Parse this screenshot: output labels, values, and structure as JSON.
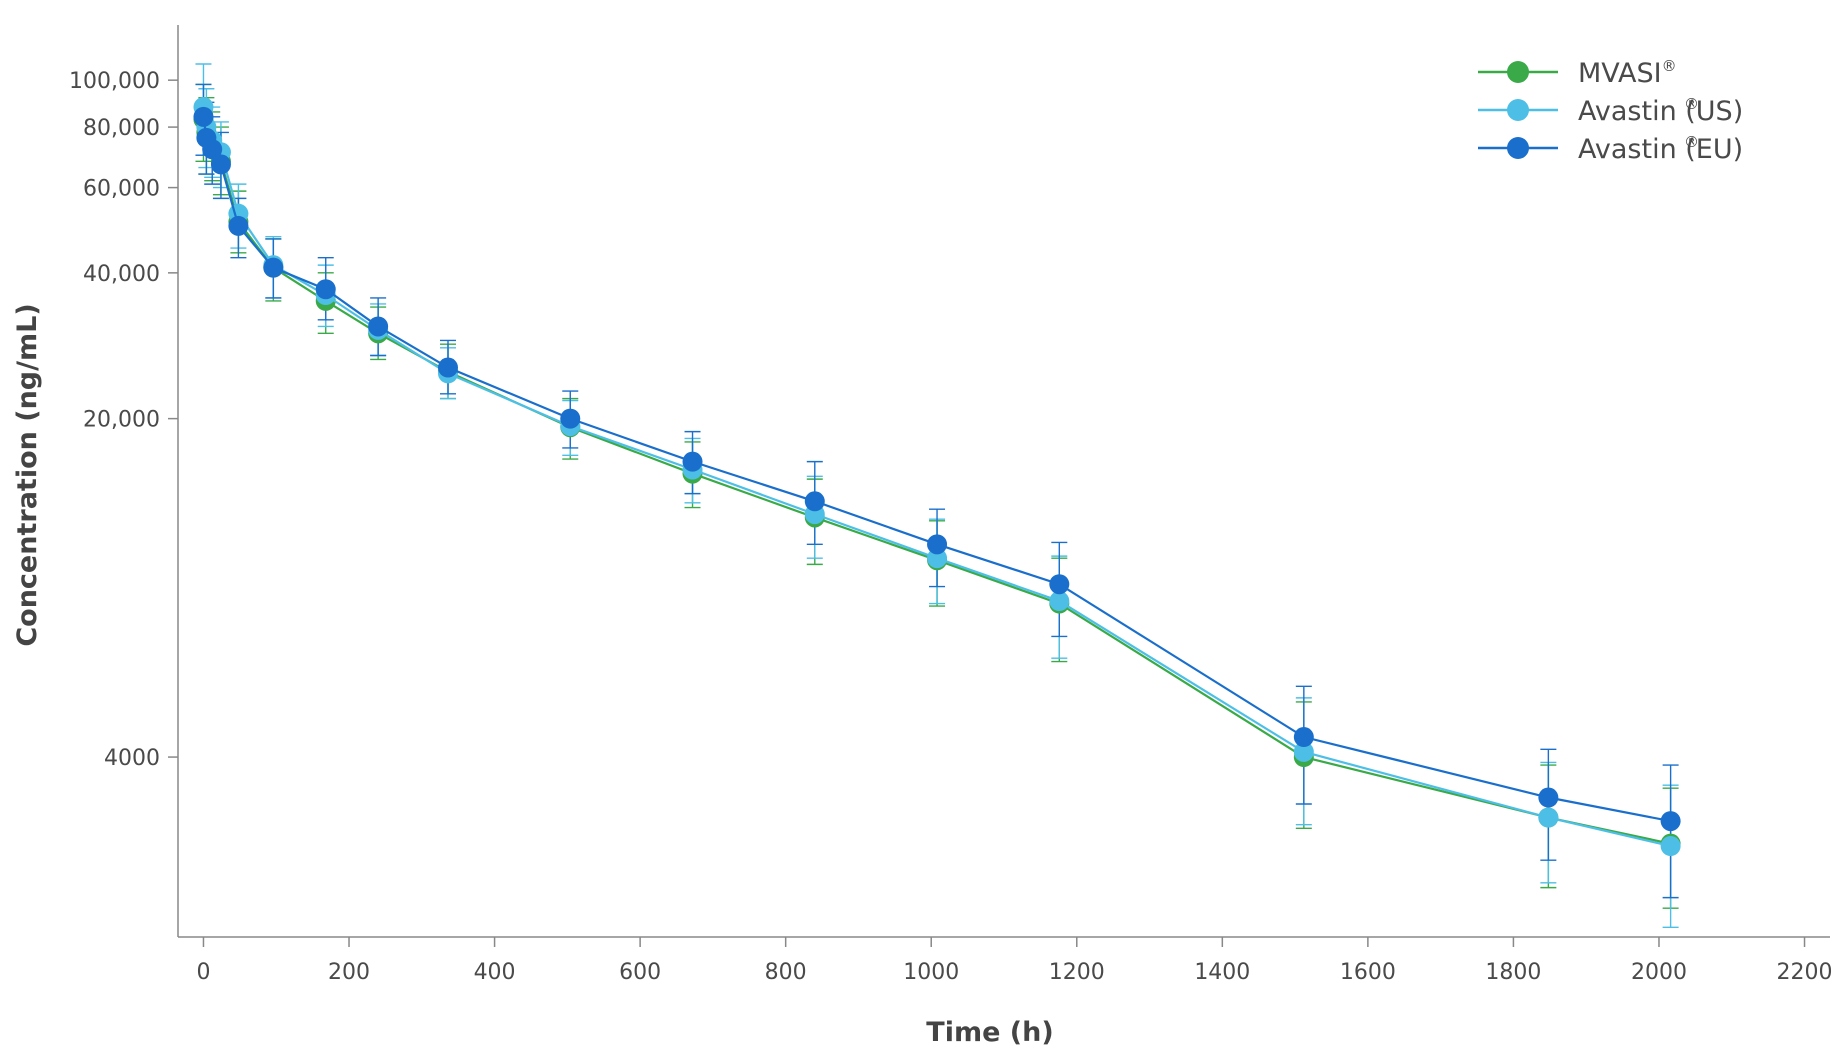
{
  "chart_data": {
    "type": "line",
    "title": "",
    "xlabel": "Time (h)",
    "ylabel": "Concentration (ng/mL)",
    "y_scale": "log",
    "xlim": [
      -35,
      2235
    ],
    "ylim": [
      1700,
      130000
    ],
    "x_ticks": [
      0,
      200,
      400,
      600,
      800,
      1000,
      1200,
      1400,
      1600,
      1800,
      2000,
      2200
    ],
    "x_tick_labels": [
      "0",
      "200",
      "400",
      "600",
      "800",
      "1000",
      "1200",
      "1400",
      "1600",
      "1800",
      "2000",
      "2200"
    ],
    "y_ticks": [
      4000,
      20000,
      40000,
      60000,
      80000,
      100000
    ],
    "y_tick_labels": [
      "4000",
      "20,000",
      "40,000",
      "60,000",
      "80,000",
      "100,000"
    ],
    "grid": false,
    "legend_position": "top-right",
    "series": [
      {
        "name": "MVASI",
        "superscript": "®",
        "color": "#3aaa49",
        "points": [
          {
            "x": 0,
            "y": 83000,
            "lo": 68000,
            "hi": 98000
          },
          {
            "x": 4,
            "y": 78000,
            "lo": 64000,
            "hi": 92000
          },
          {
            "x": 12,
            "y": 74000,
            "lo": 62000,
            "hi": 86000
          },
          {
            "x": 24,
            "y": 68000,
            "lo": 58000,
            "hi": 80000
          },
          {
            "x": 48,
            "y": 51000,
            "lo": 44000,
            "hi": 59000
          },
          {
            "x": 96,
            "y": 41000,
            "lo": 35000,
            "hi": 47000
          },
          {
            "x": 168,
            "y": 35000,
            "lo": 30000,
            "hi": 40000
          },
          {
            "x": 240,
            "y": 30000,
            "lo": 26500,
            "hi": 34000
          },
          {
            "x": 336,
            "y": 25000,
            "lo": 22000,
            "hi": 28500
          },
          {
            "x": 504,
            "y": 19200,
            "lo": 16500,
            "hi": 22000
          },
          {
            "x": 672,
            "y": 15400,
            "lo": 13100,
            "hi": 17900
          },
          {
            "x": 840,
            "y": 12500,
            "lo": 10000,
            "hi": 15000
          },
          {
            "x": 1008,
            "y": 10200,
            "lo": 8200,
            "hi": 12300
          },
          {
            "x": 1176,
            "y": 8300,
            "lo": 6300,
            "hi": 10300
          },
          {
            "x": 1512,
            "y": 4000,
            "lo": 2850,
            "hi": 5200
          },
          {
            "x": 1848,
            "y": 3000,
            "lo": 2150,
            "hi": 3850
          },
          {
            "x": 2016,
            "y": 2650,
            "lo": 1950,
            "hi": 3450
          }
        ]
      },
      {
        "name": "Avastin (US)",
        "superscript": "®",
        "color": "#4dbfe6",
        "points": [
          {
            "x": 0,
            "y": 88000,
            "lo": 70000,
            "hi": 108000
          },
          {
            "x": 4,
            "y": 80000,
            "lo": 66000,
            "hi": 96000
          },
          {
            "x": 12,
            "y": 75000,
            "lo": 63000,
            "hi": 88000
          },
          {
            "x": 24,
            "y": 71000,
            "lo": 60000,
            "hi": 82000
          },
          {
            "x": 48,
            "y": 53000,
            "lo": 45000,
            "hi": 61000
          },
          {
            "x": 96,
            "y": 41500,
            "lo": 35500,
            "hi": 47500
          },
          {
            "x": 168,
            "y": 36000,
            "lo": 31000,
            "hi": 41500
          },
          {
            "x": 240,
            "y": 30500,
            "lo": 27000,
            "hi": 34500
          },
          {
            "x": 336,
            "y": 24800,
            "lo": 22000,
            "hi": 28000
          },
          {
            "x": 504,
            "y": 19300,
            "lo": 16800,
            "hi": 21800
          },
          {
            "x": 672,
            "y": 15700,
            "lo": 13400,
            "hi": 18200
          },
          {
            "x": 840,
            "y": 12700,
            "lo": 10300,
            "hi": 15200
          },
          {
            "x": 1008,
            "y": 10300,
            "lo": 8300,
            "hi": 12400
          },
          {
            "x": 1176,
            "y": 8400,
            "lo": 6400,
            "hi": 10400
          },
          {
            "x": 1512,
            "y": 4100,
            "lo": 2900,
            "hi": 5300
          },
          {
            "x": 1848,
            "y": 3000,
            "lo": 2200,
            "hi": 3900
          },
          {
            "x": 2016,
            "y": 2620,
            "lo": 1780,
            "hi": 3500
          }
        ]
      },
      {
        "name": "Avastin (EU)",
        "superscript": "®",
        "color": "#1a6fcc",
        "points": [
          {
            "x": 0,
            "y": 84000,
            "lo": 70000,
            "hi": 98000
          },
          {
            "x": 4,
            "y": 76000,
            "lo": 64000,
            "hi": 90000
          },
          {
            "x": 12,
            "y": 72000,
            "lo": 61000,
            "hi": 84000
          },
          {
            "x": 24,
            "y": 67000,
            "lo": 57000,
            "hi": 78000
          },
          {
            "x": 48,
            "y": 50000,
            "lo": 43000,
            "hi": 57000
          },
          {
            "x": 96,
            "y": 41000,
            "lo": 35500,
            "hi": 47000
          },
          {
            "x": 168,
            "y": 37000,
            "lo": 32000,
            "hi": 43000
          },
          {
            "x": 240,
            "y": 31000,
            "lo": 27000,
            "hi": 35500
          },
          {
            "x": 336,
            "y": 25500,
            "lo": 22500,
            "hi": 29000
          },
          {
            "x": 504,
            "y": 20000,
            "lo": 17400,
            "hi": 22800
          },
          {
            "x": 672,
            "y": 16300,
            "lo": 14000,
            "hi": 18800
          },
          {
            "x": 840,
            "y": 13500,
            "lo": 11000,
            "hi": 16300
          },
          {
            "x": 1008,
            "y": 11000,
            "lo": 9000,
            "hi": 13000
          },
          {
            "x": 1176,
            "y": 9100,
            "lo": 7100,
            "hi": 11100
          },
          {
            "x": 1512,
            "y": 4400,
            "lo": 3200,
            "hi": 5600
          },
          {
            "x": 1848,
            "y": 3300,
            "lo": 2450,
            "hi": 4150
          },
          {
            "x": 2016,
            "y": 2950,
            "lo": 2050,
            "hi": 3850
          }
        ]
      }
    ]
  }
}
